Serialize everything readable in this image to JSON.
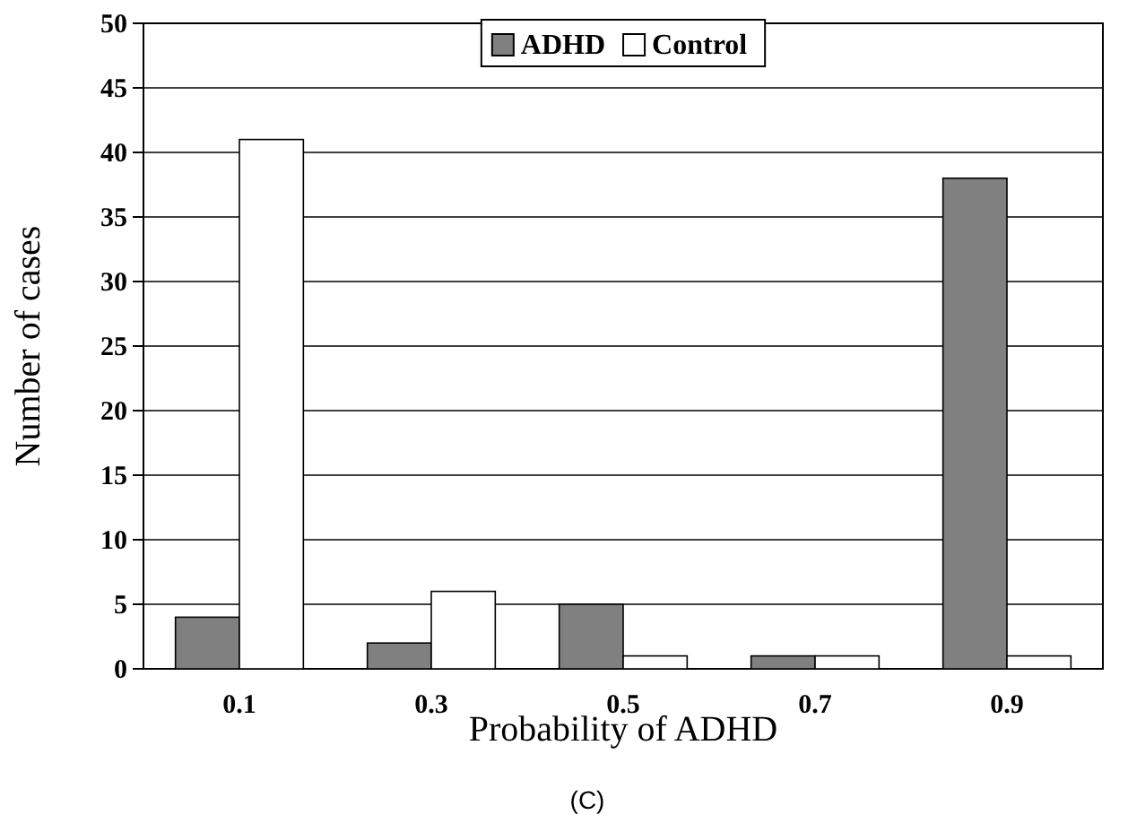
{
  "chart_data": {
    "type": "bar",
    "xlabel": "Probability of ADHD",
    "ylabel": "Number of cases",
    "annotations": [
      "(C)"
    ],
    "categories": [
      "0.1",
      "0.3",
      "0.5",
      "0.7",
      "0.9"
    ],
    "series": [
      {
        "name": "ADHD",
        "color": "#808080",
        "values": [
          4,
          2,
          5,
          1,
          38
        ]
      },
      {
        "name": "Control",
        "color": "#ffffff",
        "values": [
          41,
          6,
          1,
          1,
          1
        ]
      }
    ],
    "ylim": [
      0,
      50
    ],
    "yticks": [
      0,
      5,
      10,
      15,
      20,
      25,
      30,
      35,
      40,
      45,
      50
    ],
    "grid": "y",
    "legend": "top"
  }
}
